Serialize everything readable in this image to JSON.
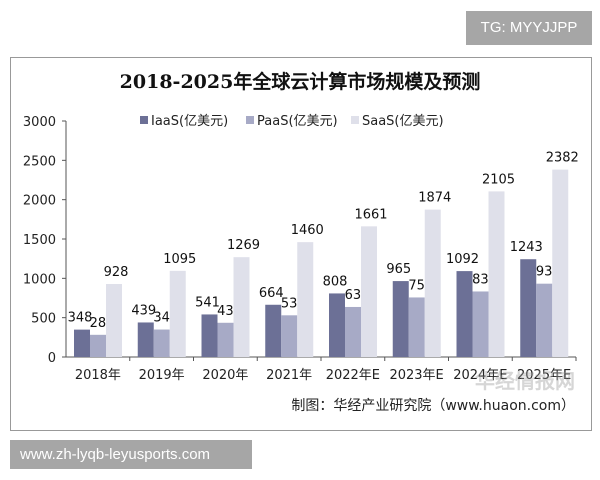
{
  "watermarks": {
    "top": "TG: MYYJJPP",
    "bottom": "www.zh-lyqb-leyusports.com",
    "logo": "华经情报网 huaon.com"
  },
  "chart_data": {
    "type": "bar",
    "title": "2018-2025年全球云计算市场规模及预测",
    "categories": [
      "2018年",
      "2019年",
      "2020年",
      "2021年",
      "2022年E",
      "2023年E",
      "2024年E",
      "2025年E"
    ],
    "series": [
      {
        "name": "IaaS(亿美元)",
        "color": "#6c7096",
        "values": [
          348,
          439,
          541,
          664,
          808,
          965,
          1092,
          1243
        ]
      },
      {
        "name": "PaaS(亿美元)",
        "color": "#a7aac6",
        "values": [
          282,
          349,
          435,
          530,
          636,
          757,
          833,
          932
        ]
      },
      {
        "name": "SaaS(亿美元)",
        "color": "#dfe0ea",
        "values": [
          928,
          1095,
          1269,
          1460,
          1661,
          1874,
          2105,
          2382
        ]
      }
    ],
    "ylim": [
      0,
      3000
    ],
    "yticks": [
      0,
      500,
      1000,
      1500,
      2000,
      2500,
      3000
    ],
    "legend": "top",
    "grid": false,
    "source": "制图：华经产业研究院（www.huaon.com）"
  }
}
